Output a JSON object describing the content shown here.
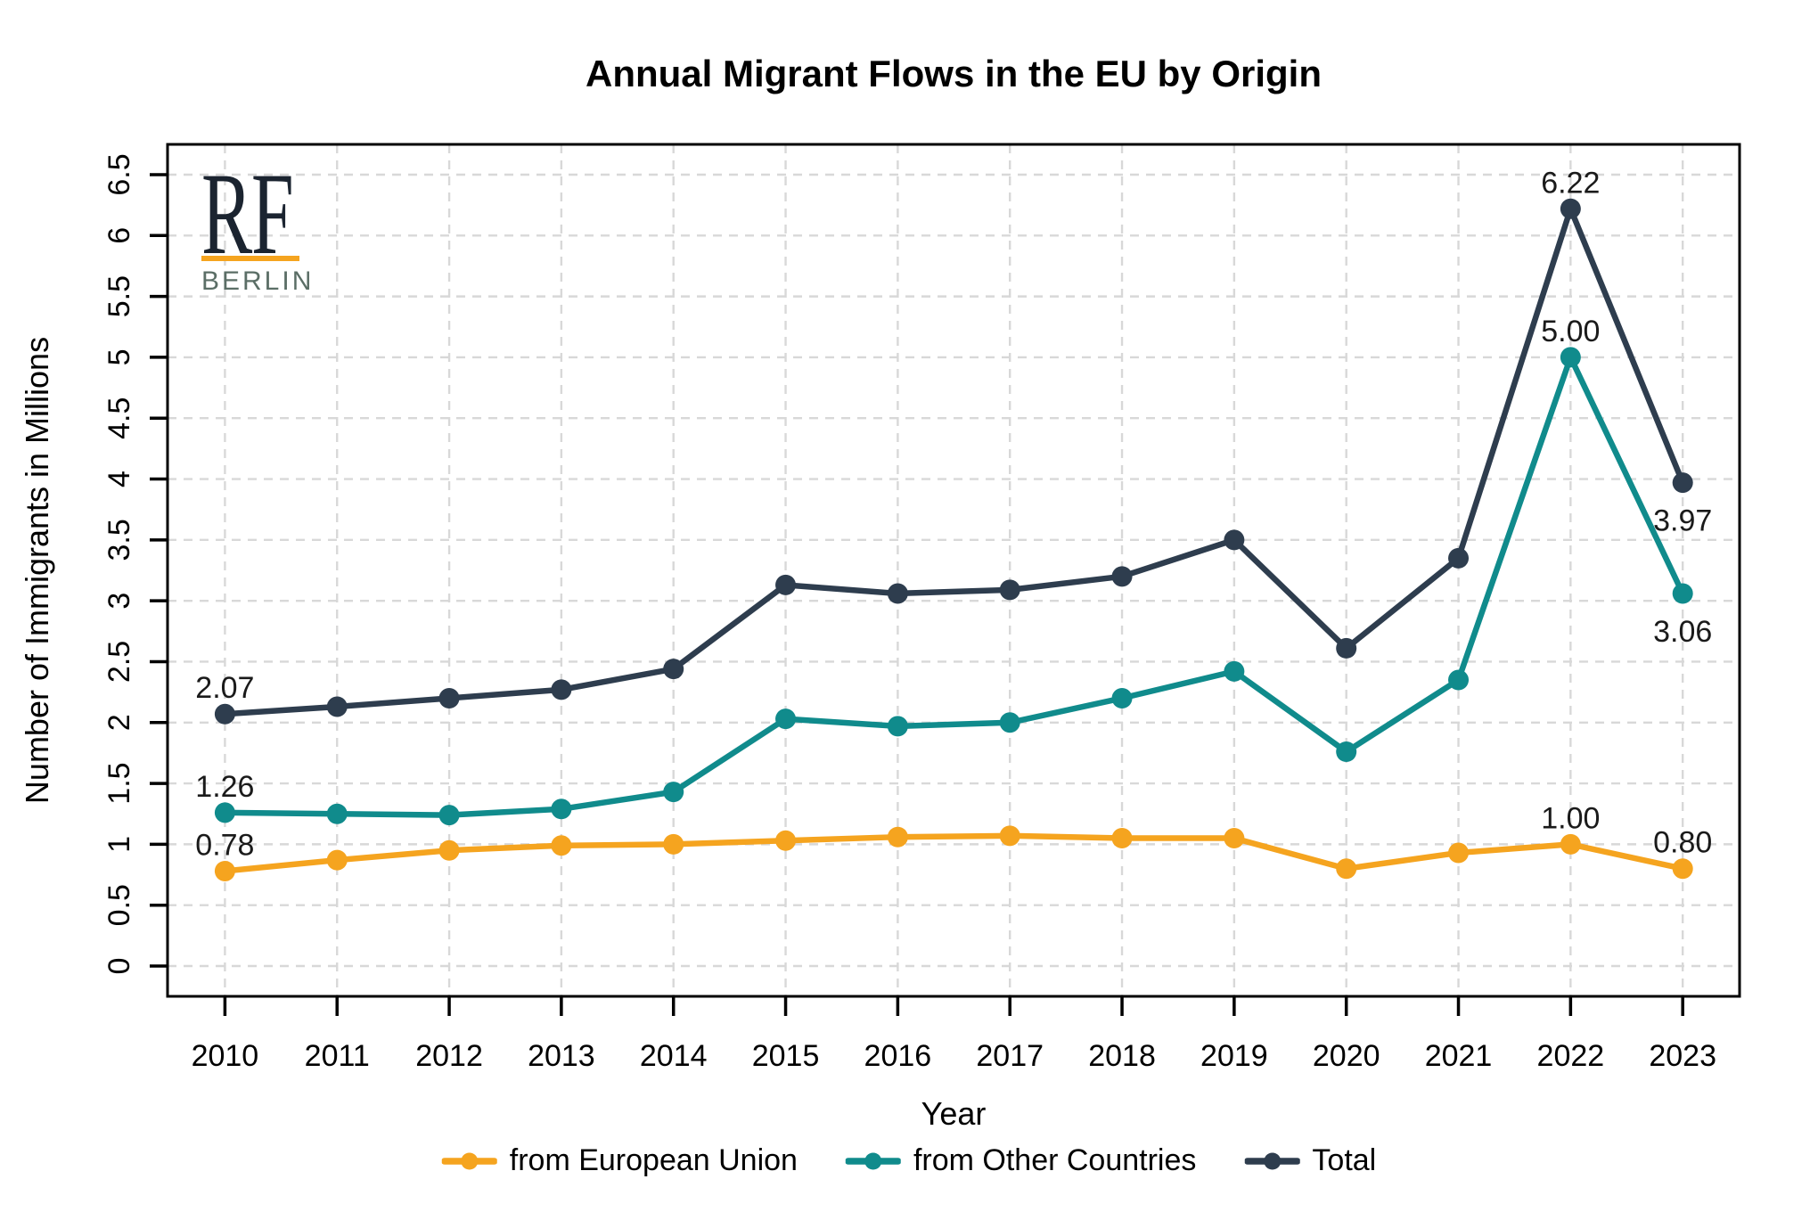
{
  "logo": {
    "text": "RF",
    "city": "BERLIN",
    "underline_color": "#f5a41f"
  },
  "chart_data": {
    "type": "line",
    "title": "Annual Migrant Flows in the EU by Origin",
    "xlabel": "Year",
    "ylabel": "Number of Immigrants in Millions",
    "x": [
      2010,
      2011,
      2012,
      2013,
      2014,
      2015,
      2016,
      2017,
      2018,
      2019,
      2020,
      2021,
      2022,
      2023
    ],
    "ylim": [
      0,
      6.5
    ],
    "ytick_step": 0.5,
    "ytick_labels": [
      "0",
      "0.5",
      "1",
      "1.5",
      "2",
      "2.5",
      "3",
      "3.5",
      "4",
      "4.5",
      "5",
      "5.5",
      "6",
      "6.5"
    ],
    "grid": "dashed-both-axes",
    "legend_position": "bottom",
    "series": [
      {
        "name": "from European Union",
        "color": "#f5a41f",
        "values": [
          0.78,
          0.87,
          0.95,
          0.99,
          1.0,
          1.03,
          1.06,
          1.07,
          1.05,
          1.05,
          0.8,
          0.93,
          1.0,
          0.8
        ]
      },
      {
        "name": "from Other Countries",
        "color": "#108b8c",
        "values": [
          1.26,
          1.25,
          1.24,
          1.29,
          1.43,
          2.03,
          1.97,
          2.0,
          2.2,
          2.42,
          1.76,
          2.35,
          5.0,
          3.06
        ]
      },
      {
        "name": "Total",
        "color": "#2e3d4e",
        "values": [
          2.07,
          2.13,
          2.2,
          2.27,
          2.44,
          3.13,
          3.06,
          3.09,
          3.2,
          3.5,
          2.61,
          3.35,
          6.22,
          3.97
        ]
      }
    ],
    "point_labels": [
      {
        "series": 2,
        "index": 0,
        "text": "2.07",
        "position": "above"
      },
      {
        "series": 1,
        "index": 0,
        "text": "1.26",
        "position": "above"
      },
      {
        "series": 0,
        "index": 0,
        "text": "0.78",
        "position": "above"
      },
      {
        "series": 2,
        "index": 12,
        "text": "6.22",
        "position": "above"
      },
      {
        "series": 1,
        "index": 12,
        "text": "5.00",
        "position": "above"
      },
      {
        "series": 0,
        "index": 12,
        "text": "1.00",
        "position": "above"
      },
      {
        "series": 2,
        "index": 13,
        "text": "3.97",
        "position": "below"
      },
      {
        "series": 1,
        "index": 13,
        "text": "3.06",
        "position": "below"
      },
      {
        "series": 0,
        "index": 13,
        "text": "0.80",
        "position": "above"
      }
    ],
    "colors": {
      "axis": "#000000",
      "grid": "#d8d8d8",
      "tick_label": "#000000",
      "data_label": "#1a1a1a",
      "background": "#ffffff"
    }
  }
}
